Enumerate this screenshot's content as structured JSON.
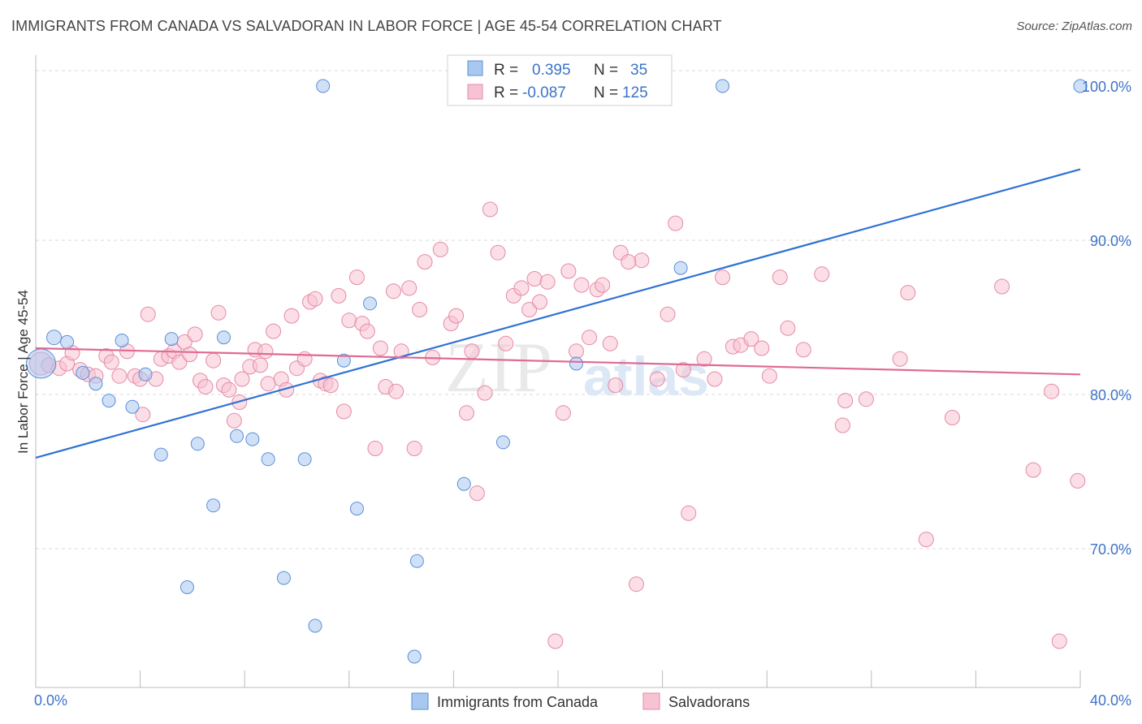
{
  "header": {
    "title": "IMMIGRANTS FROM CANADA VS SALVADORAN IN LABOR FORCE | AGE 45-54 CORRELATION CHART",
    "source": "Source: ZipAtlas.com"
  },
  "colors": {
    "series_blue_fill": "#a9c8f0",
    "series_blue_stroke": "#5b8fd8",
    "series_blue_line": "#2f72d4",
    "series_pink_fill": "#f7c2d2",
    "series_pink_stroke": "#e58aa8",
    "series_pink_line": "#e06a93",
    "tick_label": "#3d73c9",
    "grid": "#d8d8d8"
  },
  "legend": {
    "blue": {
      "r_label": "R =",
      "r_value": "0.395",
      "n_label": "N =",
      "n_value": "35"
    },
    "pink": {
      "r_label": "R =",
      "r_value": "-0.087",
      "n_label": "N =",
      "n_value": "125"
    }
  },
  "bottom_legend": {
    "blue_label": "Immigrants from Canada",
    "pink_label": "Salvadorans"
  },
  "watermark": {
    "zip": "ZIP",
    "atlas": "atlas"
  },
  "chart_data": {
    "type": "scatter",
    "ylabel": "In Labor Force | Age 45-54",
    "xlim": [
      0,
      40
    ],
    "ylim": [
      61,
      102
    ],
    "x_tick_labels": [
      {
        "value": 0,
        "label": "0.0%"
      },
      {
        "value": 40,
        "label": "40.0%"
      }
    ],
    "y_tick_labels": [
      {
        "value": 70,
        "label": "70.0%"
      },
      {
        "value": 80,
        "label": "80.0%"
      },
      {
        "value": 90,
        "label": "90.0%"
      },
      {
        "value": 100,
        "label": "100.0%"
      }
    ],
    "y_gridlines": [
      70,
      80,
      90,
      101
    ],
    "x_minor_ticks": [
      0,
      4,
      8,
      12,
      16,
      20,
      24,
      28,
      32,
      36,
      40
    ],
    "series": [
      {
        "key": "blue",
        "trend": {
          "x": [
            0,
            40
          ],
          "y": [
            75.9,
            94.6
          ]
        },
        "points": [
          [
            0.2,
            82.0,
            18
          ],
          [
            0.7,
            83.7,
            9
          ],
          [
            1.2,
            83.4,
            8
          ],
          [
            1.8,
            81.4,
            8
          ],
          [
            2.3,
            80.7,
            8
          ],
          [
            2.8,
            79.6,
            8
          ],
          [
            3.3,
            83.5,
            8
          ],
          [
            3.7,
            79.2,
            8
          ],
          [
            4.2,
            81.3,
            8
          ],
          [
            4.8,
            76.1,
            8
          ],
          [
            5.2,
            83.6,
            8
          ],
          [
            5.8,
            67.5,
            8
          ],
          [
            6.2,
            76.8,
            8
          ],
          [
            6.8,
            72.8,
            8
          ],
          [
            7.2,
            83.7,
            8
          ],
          [
            7.7,
            77.3,
            8
          ],
          [
            8.3,
            77.1,
            8
          ],
          [
            8.9,
            75.8,
            8
          ],
          [
            9.5,
            68.1,
            8
          ],
          [
            10.3,
            75.8,
            8
          ],
          [
            10.7,
            65.0,
            8
          ],
          [
            11.0,
            100.0,
            8
          ],
          [
            11.8,
            82.2,
            8
          ],
          [
            12.3,
            72.6,
            8
          ],
          [
            12.8,
            85.9,
            8
          ],
          [
            14.5,
            63.0,
            8
          ],
          [
            14.6,
            69.2,
            8
          ],
          [
            16.2,
            100.0,
            8
          ],
          [
            16.4,
            74.2,
            8
          ],
          [
            17.5,
            100.0,
            8
          ],
          [
            17.9,
            76.9,
            8
          ],
          [
            20.7,
            82.0,
            8
          ],
          [
            24.7,
            88.2,
            8
          ],
          [
            26.3,
            100.0,
            8
          ],
          [
            40.0,
            100.0,
            8
          ]
        ]
      },
      {
        "key": "pink",
        "trend": {
          "x": [
            0,
            40
          ],
          "y": [
            83.0,
            81.3
          ]
        },
        "points": [
          [
            0.2,
            82.0,
            14
          ],
          [
            0.5,
            81.9,
            9
          ],
          [
            0.9,
            81.7,
            9
          ],
          [
            1.2,
            82.0,
            9
          ],
          [
            1.4,
            82.7,
            9
          ],
          [
            1.7,
            81.6,
            9
          ],
          [
            2.0,
            81.3,
            9
          ],
          [
            2.3,
            81.2,
            9
          ],
          [
            2.7,
            82.5,
            9
          ],
          [
            2.9,
            82.1,
            9
          ],
          [
            3.2,
            81.2,
            9
          ],
          [
            3.5,
            82.8,
            9
          ],
          [
            3.8,
            81.2,
            9
          ],
          [
            4.0,
            81.0,
            9
          ],
          [
            4.1,
            78.7,
            9
          ],
          [
            4.3,
            85.2,
            9
          ],
          [
            4.6,
            81.0,
            9
          ],
          [
            4.8,
            82.3,
            9
          ],
          [
            5.1,
            82.5,
            9
          ],
          [
            5.3,
            82.8,
            9
          ],
          [
            5.5,
            82.1,
            9
          ],
          [
            5.7,
            83.4,
            9
          ],
          [
            5.9,
            82.6,
            9
          ],
          [
            6.1,
            83.9,
            9
          ],
          [
            6.3,
            80.9,
            9
          ],
          [
            6.5,
            80.5,
            9
          ],
          [
            6.8,
            82.2,
            9
          ],
          [
            7.0,
            85.3,
            9
          ],
          [
            7.2,
            80.6,
            9
          ],
          [
            7.4,
            80.3,
            9
          ],
          [
            7.6,
            78.3,
            9
          ],
          [
            7.8,
            79.5,
            9
          ],
          [
            7.9,
            81.0,
            9
          ],
          [
            8.2,
            81.8,
            9
          ],
          [
            8.4,
            82.9,
            9
          ],
          [
            8.6,
            81.9,
            9
          ],
          [
            8.8,
            82.8,
            9
          ],
          [
            8.9,
            80.7,
            9
          ],
          [
            9.1,
            84.1,
            9
          ],
          [
            9.4,
            81.0,
            9
          ],
          [
            9.6,
            80.3,
            9
          ],
          [
            9.8,
            85.1,
            9
          ],
          [
            10.0,
            81.7,
            9
          ],
          [
            10.3,
            82.3,
            9
          ],
          [
            10.5,
            86.0,
            9
          ],
          [
            10.7,
            86.2,
            9
          ],
          [
            10.9,
            80.9,
            9
          ],
          [
            11.1,
            80.7,
            9
          ],
          [
            11.3,
            80.6,
            9
          ],
          [
            11.6,
            86.4,
            9
          ],
          [
            11.8,
            78.9,
            9
          ],
          [
            12.0,
            84.8,
            9
          ],
          [
            12.3,
            87.6,
            9
          ],
          [
            12.5,
            84.6,
            9
          ],
          [
            12.7,
            84.1,
            9
          ],
          [
            13.0,
            76.5,
            9
          ],
          [
            13.2,
            83.0,
            9
          ],
          [
            13.4,
            80.5,
            9
          ],
          [
            13.7,
            86.7,
            9
          ],
          [
            14.0,
            82.8,
            9
          ],
          [
            14.3,
            86.9,
            9
          ],
          [
            14.5,
            76.5,
            9
          ],
          [
            14.7,
            85.5,
            9
          ],
          [
            14.9,
            88.6,
            9
          ],
          [
            15.2,
            82.4,
            9
          ],
          [
            15.5,
            89.4,
            9
          ],
          [
            15.9,
            84.6,
            9
          ],
          [
            16.1,
            85.1,
            9
          ],
          [
            16.5,
            78.8,
            9
          ],
          [
            16.7,
            82.8,
            9
          ],
          [
            16.9,
            73.6,
            9
          ],
          [
            17.2,
            80.1,
            9
          ],
          [
            17.4,
            92.0,
            9
          ],
          [
            17.7,
            89.2,
            9
          ],
          [
            18.0,
            83.3,
            9
          ],
          [
            18.3,
            86.4,
            9
          ],
          [
            18.6,
            86.9,
            9
          ],
          [
            18.9,
            85.5,
            9
          ],
          [
            19.1,
            87.5,
            9
          ],
          [
            19.3,
            86.0,
            9
          ],
          [
            19.6,
            87.3,
            9
          ],
          [
            19.9,
            64.0,
            9
          ],
          [
            20.2,
            78.8,
            9
          ],
          [
            20.4,
            88.0,
            9
          ],
          [
            20.7,
            82.8,
            9
          ],
          [
            20.9,
            87.1,
            9
          ],
          [
            21.2,
            83.7,
            9
          ],
          [
            21.5,
            86.8,
            9
          ],
          [
            21.7,
            87.1,
            9
          ],
          [
            22.0,
            83.3,
            9
          ],
          [
            22.2,
            80.6,
            9
          ],
          [
            22.4,
            89.2,
            9
          ],
          [
            23.0,
            67.7,
            9
          ],
          [
            23.2,
            88.7,
            9
          ],
          [
            23.8,
            81.0,
            9
          ],
          [
            24.2,
            85.2,
            9
          ],
          [
            24.5,
            91.1,
            9
          ],
          [
            24.8,
            81.6,
            9
          ],
          [
            25.0,
            72.3,
            9
          ],
          [
            25.6,
            82.3,
            9
          ],
          [
            26.0,
            81.0,
            9
          ],
          [
            26.3,
            87.6,
            9
          ],
          [
            26.7,
            83.1,
            9
          ],
          [
            27.0,
            83.2,
            9
          ],
          [
            27.4,
            83.6,
            9
          ],
          [
            27.8,
            83.0,
            9
          ],
          [
            28.1,
            81.2,
            9
          ],
          [
            28.5,
            87.6,
            9
          ],
          [
            28.8,
            84.3,
            9
          ],
          [
            29.4,
            82.9,
            9
          ],
          [
            30.1,
            87.8,
            9
          ],
          [
            31.0,
            79.6,
            9
          ],
          [
            31.8,
            79.7,
            9
          ],
          [
            33.4,
            86.6,
            9
          ],
          [
            34.1,
            70.6,
            9
          ],
          [
            35.1,
            78.5,
            9
          ],
          [
            37.0,
            87.0,
            9
          ],
          [
            38.2,
            75.1,
            9
          ],
          [
            38.9,
            80.2,
            9
          ],
          [
            39.2,
            64.0,
            9
          ],
          [
            39.9,
            74.4,
            9
          ],
          [
            33.1,
            82.3,
            9
          ],
          [
            30.9,
            78.0,
            9
          ],
          [
            22.7,
            88.6,
            9
          ],
          [
            13.8,
            80.2,
            9
          ]
        ]
      }
    ]
  }
}
